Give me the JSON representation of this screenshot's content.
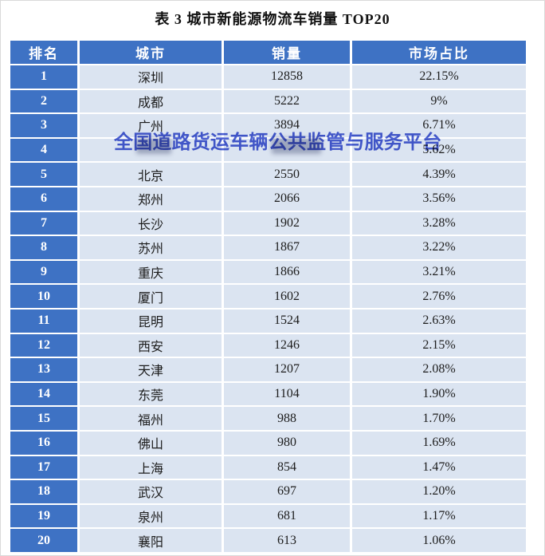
{
  "title": "表 3 城市新能源物流车销量 TOP20",
  "watermark": {
    "text": "全国道路货运车辆公共监管与服务平台",
    "color": "#4A5FD3"
  },
  "colors": {
    "header_blue": "#3E72C4",
    "row_light_blue": "#DBE4F1",
    "gridline_white": "#FFFFFF",
    "text_dark": "#1C1C1C",
    "watermark_blue": "#4A5FD3"
  },
  "chart_data": {
    "type": "table",
    "title": "表 3 城市新能源物流车销量 TOP20",
    "columns": [
      "排名",
      "城市",
      "销量",
      "市场占比"
    ],
    "rows": [
      [
        "1",
        "深圳",
        "12858",
        "22.15%"
      ],
      [
        "2",
        "成都",
        "5222",
        "9%"
      ],
      [
        "3",
        "广州",
        "3894",
        "6.71%"
      ],
      [
        "4",
        "",
        "",
        "5.62%"
      ],
      [
        "5",
        "北京",
        "2550",
        "4.39%"
      ],
      [
        "6",
        "郑州",
        "2066",
        "3.56%"
      ],
      [
        "7",
        "长沙",
        "1902",
        "3.28%"
      ],
      [
        "8",
        "苏州",
        "1867",
        "3.22%"
      ],
      [
        "9",
        "重庆",
        "1866",
        "3.21%"
      ],
      [
        "10",
        "厦门",
        "1602",
        "2.76%"
      ],
      [
        "11",
        "昆明",
        "1524",
        "2.63%"
      ],
      [
        "12",
        "西安",
        "1246",
        "2.15%"
      ],
      [
        "13",
        "天津",
        "1207",
        "2.08%"
      ],
      [
        "14",
        "东莞",
        "1104",
        "1.90%"
      ],
      [
        "15",
        "福州",
        "988",
        "1.70%"
      ],
      [
        "16",
        "佛山",
        "980",
        "1.69%"
      ],
      [
        "17",
        "上海",
        "854",
        "1.47%"
      ],
      [
        "18",
        "武汉",
        "697",
        "1.20%"
      ],
      [
        "19",
        "泉州",
        "681",
        "1.17%"
      ],
      [
        "20",
        "襄阳",
        "613",
        "1.06%"
      ]
    ],
    "layout_hints": {
      "legend": "none",
      "grid": "white gaps between solid-filled cells",
      "note": "row 4 city and sales cells are hidden behind the blue watermark overlay"
    }
  }
}
